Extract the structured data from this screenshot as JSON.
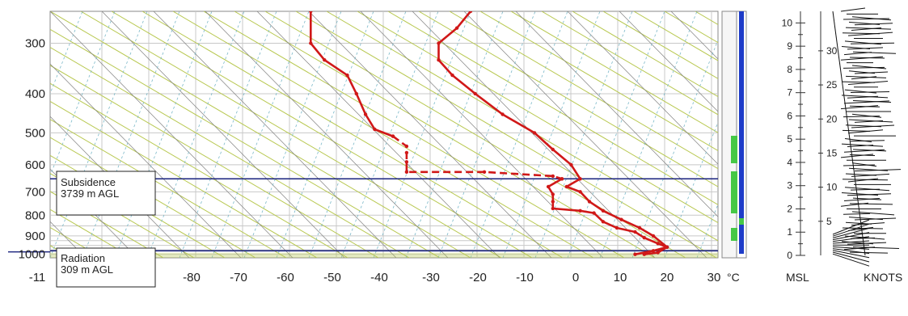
{
  "chart_data": [
    {
      "type": "line",
      "title": "",
      "y_axis": {
        "scale": "log-pressure",
        "ticks": [
          300,
          400,
          500,
          600,
          700,
          800,
          900,
          1000
        ],
        "range": [
          250,
          1020
        ]
      },
      "x_axis": {
        "unit_label": "°C",
        "ticks": [
          "-11",
          "-80",
          "-70",
          "-60",
          "-50",
          "-40",
          "-30",
          "-20",
          "-10",
          "0",
          "10",
          "20",
          "30"
        ],
        "range": [
          -110,
          30
        ]
      },
      "grid": true,
      "series": [
        {
          "line_style": "solid",
          "color": "#d01818",
          "points": [
            [
              -23,
              250
            ],
            [
              -26,
              275
            ],
            [
              -30,
              300
            ],
            [
              -30,
              330
            ],
            [
              -27,
              360
            ],
            [
              -22,
              400
            ],
            [
              -16,
              450
            ],
            [
              -9,
              500
            ],
            [
              -5,
              550
            ],
            [
              -1,
              600
            ],
            [
              1,
              650
            ],
            [
              -2,
              680
            ],
            [
              1,
              700
            ],
            [
              3,
              740
            ],
            [
              6,
              780
            ],
            [
              10,
              820
            ],
            [
              14,
              860
            ],
            [
              17,
              900
            ],
            [
              20,
              960
            ],
            [
              18,
              990
            ],
            [
              15,
              1000
            ]
          ]
        },
        {
          "line_style": "solid",
          "color": "#d01818",
          "points": [
            [
              -58,
              250
            ],
            [
              -58,
              300
            ],
            [
              -55,
              330
            ],
            [
              -50,
              360
            ],
            [
              -48,
              400
            ],
            [
              -46,
              450
            ],
            [
              -44,
              490
            ],
            [
              -40,
              510
            ]
          ]
        },
        {
          "line_style": "dashed",
          "color": "#d01818",
          "points": [
            [
              -40,
              510
            ],
            [
              -37,
              540
            ],
            [
              -37,
              560
            ],
            [
              -37,
              590
            ],
            [
              -37,
              625
            ],
            [
              -20,
              625
            ],
            [
              -5,
              640
            ],
            [
              -3,
              650
            ]
          ]
        },
        {
          "line_style": "solid",
          "color": "#d01818",
          "points": [
            [
              -3,
              650
            ],
            [
              -6,
              680
            ],
            [
              -5,
              710
            ],
            [
              -5,
              740
            ],
            [
              -5,
              770
            ],
            [
              1,
              780
            ],
            [
              4,
              790
            ],
            [
              6,
              830
            ],
            [
              9,
              860
            ],
            [
              13,
              880
            ],
            [
              15,
              910
            ],
            [
              18,
              940
            ],
            [
              20,
              960
            ],
            [
              17,
              980
            ],
            [
              13,
              1000
            ]
          ]
        }
      ],
      "annotations": [
        {
          "label": "Subsidence",
          "sublabel": "3739 m AGL",
          "pressure": 650
        },
        {
          "label": "Radiation",
          "sublabel": "309 m AGL",
          "pressure": 980
        }
      ],
      "inversion_line_color": "#1a237e"
    },
    {
      "type": "bar",
      "title": "",
      "description_axis": "MSL",
      "y_ticks": [
        0,
        1,
        2,
        3,
        4,
        5,
        6,
        7,
        8,
        9,
        10
      ],
      "ylim": [
        0,
        10.5
      ],
      "x_label": "MSL"
    },
    {
      "type": "scatter",
      "title": "",
      "x_label": "KNOTS",
      "speed_ticks": [
        5,
        10,
        15,
        20,
        25,
        30
      ],
      "ylim": [
        0,
        10.5
      ]
    }
  ],
  "labels": {
    "temp_unit": "°C",
    "msl": "MSL",
    "knots": "KNOTS",
    "subsidence_name": "Subsidence",
    "subsidence_height": "3739 m AGL",
    "radiation_name": "Radiation",
    "radiation_height": "309 m AGL"
  },
  "colors": {
    "sounding": "#d01818",
    "inversion": "#1a237e",
    "grid": "#c8c8c8",
    "dry_adiabat": "#b8c850",
    "mixing_ratio": "#7ab8c8",
    "isotherm": "#808080",
    "blue_bar": "#1e3cc8",
    "green_bar": "#46c846"
  }
}
